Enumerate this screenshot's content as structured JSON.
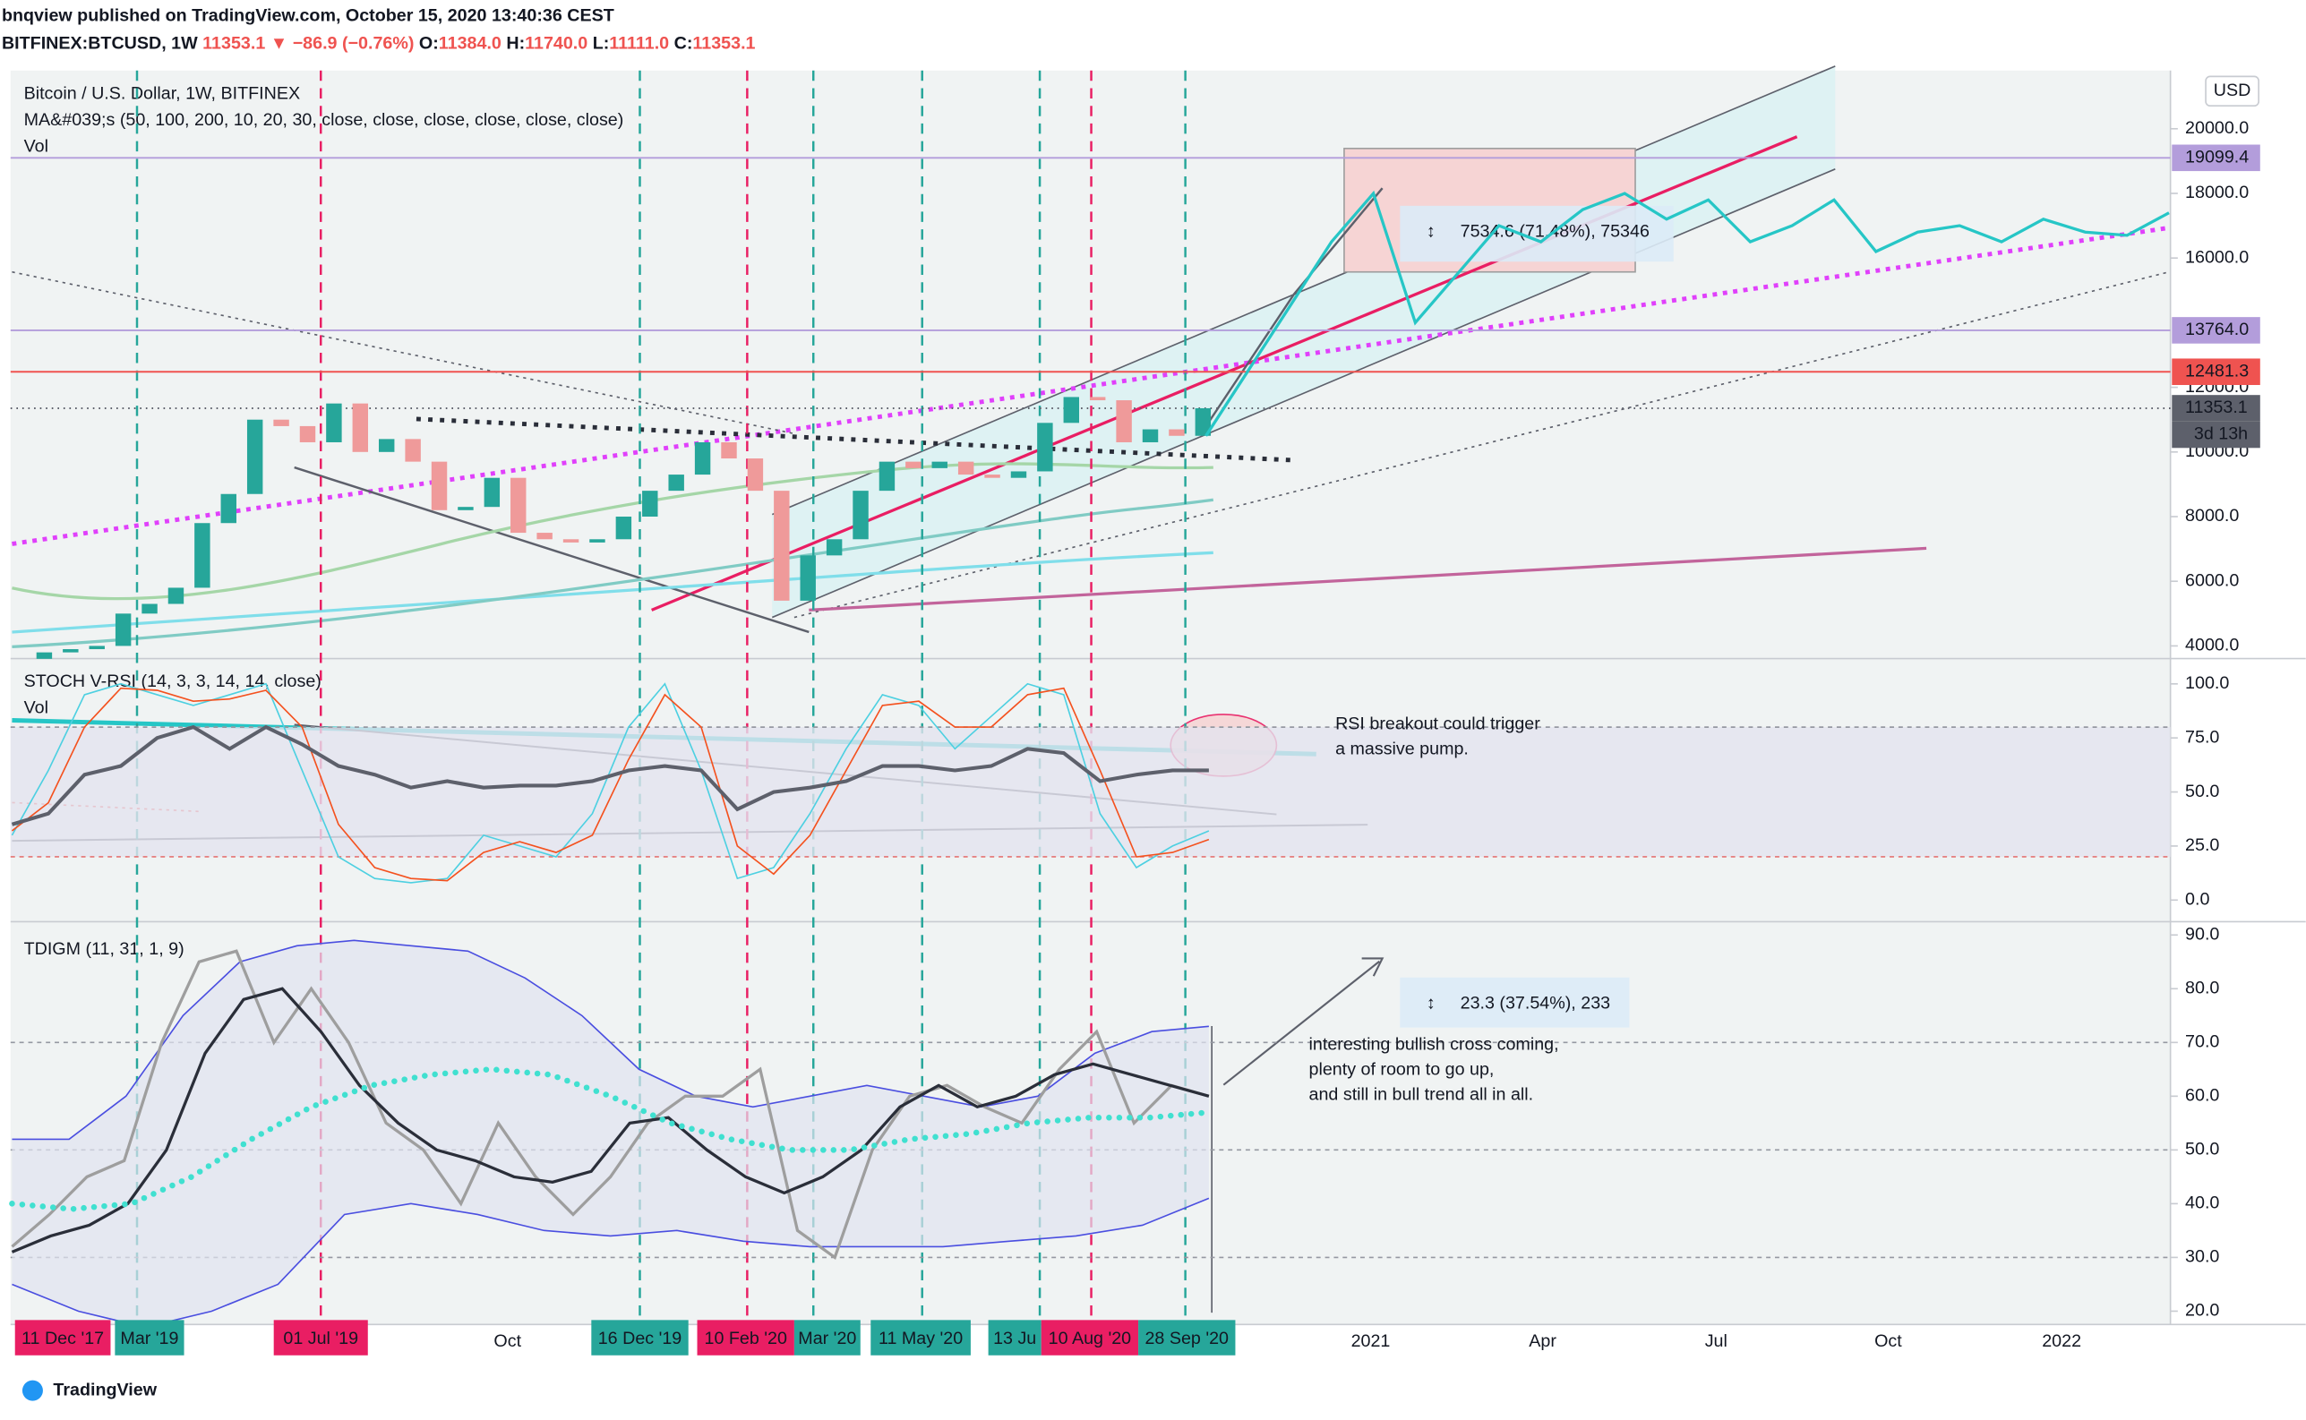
{
  "header": {
    "publisher": "bnqview published on TradingView.com, October 15, 2020 13:40:36 CEST",
    "symbol": "BITFINEX:BTCUSD, 1W",
    "change": "11353.1 ▼ −86.9 (−0.76%)",
    "ohlc": [
      [
        "O:",
        "11384.0"
      ],
      [
        "H:",
        "11740.0"
      ],
      [
        "L:",
        "11111.0"
      ],
      [
        "C:",
        "11353.1"
      ]
    ]
  },
  "chart_data": [
    {
      "type": "candlestick",
      "title": "Bitcoin / U.S. Dollar, 1W, BITFINEX",
      "legend": [
        "MA&#039;s (50, 100, 200, 10, 20, 30, close, close, close, close, close, close)",
        "Vol"
      ],
      "axis_unit": "USD",
      "values": [
        3600,
        3800,
        3900,
        4000,
        5000,
        5300,
        5800,
        7800,
        8700,
        11000,
        10800,
        10300,
        11500,
        10000,
        10400,
        9700,
        8200,
        8300,
        9200,
        7500,
        7300,
        7200,
        7300,
        8000,
        8800,
        9300,
        10300,
        9800,
        8800,
        5400,
        6800,
        7300,
        8800,
        9700,
        9500,
        9700,
        9300,
        9200,
        9400,
        10900,
        11700,
        11600,
        10300,
        10700,
        10500,
        11353.1
      ],
      "up_color": "#26a69a",
      "down_color": "#ef9a9a",
      "series": [
        {
          "color": "#26c6c6",
          "values": [
            10500,
            12500,
            14500,
            16500,
            18000,
            14000,
            15500,
            17000,
            16500,
            17500,
            18000,
            17200,
            17800,
            16500,
            17000,
            17800,
            16200,
            16800,
            17000,
            16500,
            17200,
            16800,
            16700,
            17400
          ]
        }
      ],
      "ylim": [
        3700,
        21800
      ],
      "yticks": [
        {
          "value": 4000,
          "label": "4000.0"
        },
        {
          "value": 6000,
          "label": "6000.0"
        },
        {
          "value": 8000,
          "label": "8000.0"
        },
        {
          "value": 10000,
          "label": "10000.0"
        },
        {
          "value": 12000,
          "label": "12000.0"
        },
        {
          "value": 16000,
          "label": "16000.0"
        },
        {
          "value": 18000,
          "label": "18000.0"
        },
        {
          "value": 20000,
          "label": "20000.0"
        }
      ],
      "price_lines": [
        {
          "value": 19099.4,
          "label": "19099.4",
          "color": "#b39ddb"
        },
        {
          "value": 13764.0,
          "label": "13764.0",
          "color": "#b39ddb"
        },
        {
          "value": 12481.3,
          "label": "12481.3",
          "color": "#ef5350"
        },
        {
          "value": 11353.1,
          "label": "11353.1",
          "color": "#5d606b"
        }
      ],
      "countdown": "3d 13h",
      "measure": "7534.6 (71.48%), 75346"
    },
    {
      "type": "line",
      "title": "STOCH V-RSI (14, 3, 3, 14, 14, close)",
      "legend": [
        "Vol"
      ],
      "ylim": [
        -10,
        109
      ],
      "yticks": [
        {
          "value": 100,
          "label": "100.0"
        },
        {
          "value": 75,
          "label": "75.0"
        },
        {
          "value": 50,
          "label": "50.0"
        },
        {
          "value": 25,
          "label": "25.0"
        },
        {
          "value": 0,
          "label": "0.0"
        }
      ],
      "bands": [
        80,
        20
      ],
      "series": [
        {
          "color": "#4dd0e1",
          "width": 1,
          "values": [
            30,
            60,
            95,
            100,
            95,
            90,
            95,
            100,
            60,
            20,
            10,
            8,
            10,
            30,
            25,
            20,
            40,
            80,
            100,
            60,
            10,
            15,
            40,
            70,
            95,
            90,
            70,
            85,
            100,
            95,
            40,
            15,
            25,
            32
          ]
        },
        {
          "color": "#f4511e",
          "width": 1,
          "values": [
            32,
            45,
            80,
            98,
            97,
            92,
            93,
            97,
            80,
            35,
            15,
            10,
            9,
            22,
            27,
            22,
            30,
            65,
            95,
            80,
            25,
            12,
            30,
            60,
            90,
            92,
            80,
            80,
            95,
            98,
            60,
            20,
            22,
            28
          ]
        },
        {
          "color": "#5d606b",
          "width": 2.5,
          "values": [
            35,
            40,
            58,
            62,
            75,
            80,
            70,
            80,
            72,
            62,
            58,
            52,
            55,
            52,
            53,
            53,
            55,
            60,
            62,
            60,
            42,
            50,
            52,
            55,
            62,
            62,
            60,
            62,
            70,
            68,
            55,
            58,
            60,
            60
          ]
        }
      ],
      "annotation": [
        "RSI breakout could trigger",
        "a massive pump."
      ]
    },
    {
      "type": "line",
      "title": "TDIGM (11, 31, 1, 9)",
      "ylim": [
        17.8,
        92.2
      ],
      "yticks": [
        {
          "value": 90,
          "label": "90.0"
        },
        {
          "value": 80,
          "label": "80.0"
        },
        {
          "value": 70,
          "label": "70.0"
        },
        {
          "value": 60,
          "label": "60.0"
        },
        {
          "value": 50,
          "label": "50.0"
        },
        {
          "value": 40,
          "label": "40.0"
        },
        {
          "value": 30,
          "label": "30.0"
        },
        {
          "value": 20,
          "label": "20.0"
        }
      ],
      "bands": [
        70,
        50,
        30
      ],
      "series": [
        {
          "color": "#4a4ee0",
          "width": 1,
          "values": [
            52,
            52,
            60,
            75,
            85,
            88,
            89,
            88,
            87,
            82,
            75,
            65,
            60,
            58,
            60,
            62,
            60,
            58,
            60,
            68,
            72,
            73
          ]
        },
        {
          "color": "#4a4ee0",
          "width": 1,
          "values": [
            25,
            20,
            17,
            20,
            25,
            38,
            40,
            38,
            35,
            34,
            35,
            33,
            32,
            32,
            32,
            33,
            34,
            36,
            41
          ]
        },
        {
          "color": "#9e9e9e",
          "width": 2,
          "values": [
            32,
            38,
            45,
            48,
            70,
            85,
            87,
            70,
            80,
            70,
            55,
            50,
            40,
            55,
            45,
            38,
            45,
            55,
            60,
            60,
            65,
            35,
            30,
            50,
            60,
            62,
            58,
            55,
            65,
            72,
            55,
            62,
            60
          ]
        },
        {
          "color": "#2a2e39",
          "width": 2,
          "values": [
            31,
            34,
            36,
            40,
            50,
            68,
            78,
            80,
            72,
            62,
            55,
            50,
            48,
            45,
            44,
            46,
            55,
            56,
            50,
            45,
            42,
            45,
            50,
            58,
            62,
            58,
            60,
            64,
            66,
            64,
            62,
            60
          ]
        },
        {
          "color": "#40e0d0",
          "width": 4,
          "dash": true,
          "values": [
            40,
            39,
            40,
            45,
            52,
            58,
            62,
            64,
            65,
            64,
            60,
            55,
            52,
            50,
            50,
            52,
            53,
            55,
            56,
            56,
            57
          ]
        }
      ],
      "measure": "23.3 (37.54%), 233",
      "annotation": [
        "interesting bullish cross coming,",
        "plenty of room to go up,",
        "and still in bull trend all in all."
      ]
    }
  ],
  "time_axis": [
    {
      "label": "11 Dec '17",
      "color": "#e91e63"
    },
    {
      "label": "Mar '19",
      "color": "#26a69a"
    },
    {
      "label": "01 Jul '19",
      "color": "#e91e63"
    },
    {
      "label": "Oct"
    },
    {
      "label": "16 Dec '19",
      "color": "#26a69a"
    },
    {
      "label": "10 Feb '20",
      "color": "#e91e63"
    },
    {
      "label": "Mar '20",
      "color": "#26a69a"
    },
    {
      "label": "11 May '20",
      "color": "#26a69a"
    },
    {
      "label": "13 Ju",
      "color": "#26a69a"
    },
    {
      "label": "10 Aug '20",
      "color": "#e91e63"
    },
    {
      "label": "28 Sep '20",
      "color": "#26a69a"
    },
    {
      "label": "2021"
    },
    {
      "label": "Apr"
    },
    {
      "label": "Jul"
    },
    {
      "label": "Oct"
    },
    {
      "label": "2022"
    }
  ],
  "footer": "TradingView"
}
